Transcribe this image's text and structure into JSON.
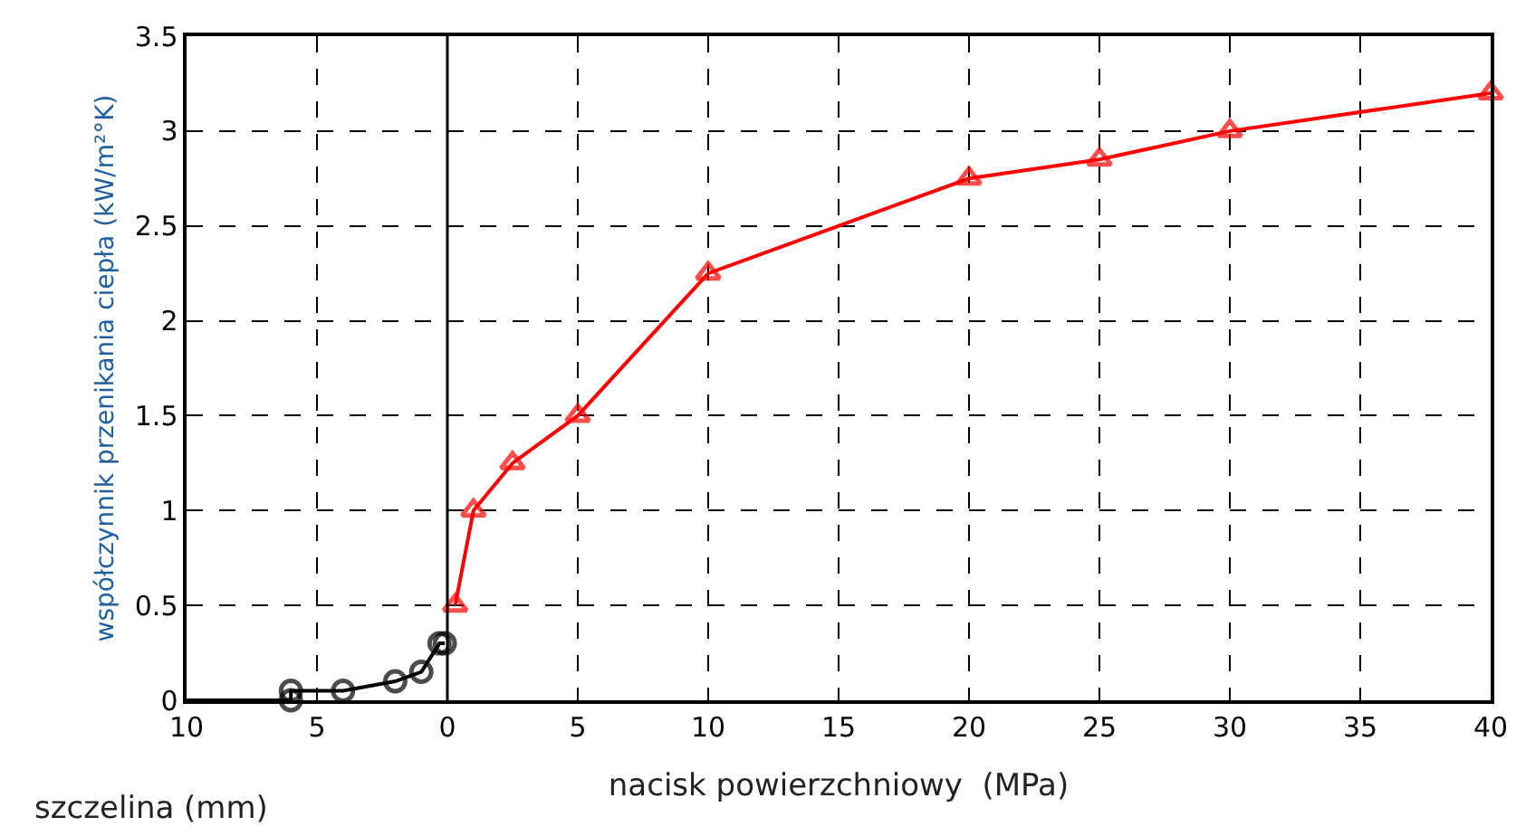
{
  "chart_data": {
    "type": "line",
    "xlabel": "nacisk powierzchniowy  (MPa)",
    "ylabel": "współczynnik przenikania ciepła (kW/m²°K)",
    "annotations": [
      "szczelina (mm)"
    ],
    "series": [
      {
        "color": "#000000",
        "marker": "circle",
        "x": [
          -10,
          -6,
          -6,
          -4,
          -2,
          -1,
          -0.3,
          -0.1
        ],
        "values": [
          0,
          0,
          0.05,
          0.05,
          0.1,
          0.15,
          0.3,
          0.3
        ]
      },
      {
        "color": "#ff0000",
        "marker": "triangle",
        "x": [
          0.3,
          1,
          2.5,
          5,
          10,
          20,
          25,
          30,
          40
        ],
        "values": [
          0.5,
          1,
          1.25,
          1.5,
          2.25,
          2.75,
          2.85,
          3.0,
          3.2
        ]
      }
    ],
    "xlim": [
      -10,
      40
    ],
    "xticks": [
      {
        "value": -10,
        "label": "10"
      },
      {
        "value": -5,
        "label": "5"
      },
      0,
      5,
      10,
      15,
      20,
      25,
      30,
      35,
      40
    ],
    "ylim": [
      0,
      3.5
    ],
    "yticks": [
      0,
      0.5,
      1,
      1.5,
      2,
      2.5,
      3,
      3.5
    ],
    "grid": true,
    "line_style": "solid",
    "ref_lines": [
      {
        "axis": "x",
        "value": 0,
        "color": "#000000",
        "line_style": "solid"
      }
    ]
  }
}
